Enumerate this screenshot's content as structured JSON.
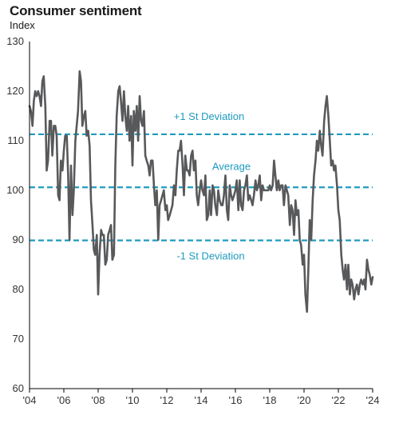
{
  "colors": {
    "line": "#58595b",
    "reference": "#1f9bbf",
    "axis": "#000000"
  },
  "chart_data": {
    "type": "line",
    "title": "Consumer sentiment",
    "ylabel": "Index",
    "xlabel": "",
    "ylim": [
      60,
      130
    ],
    "xlim": [
      2004,
      2024
    ],
    "yticks": [
      60,
      70,
      80,
      90,
      100,
      110,
      120,
      130
    ],
    "xticks": [
      2004,
      2006,
      2008,
      2010,
      2012,
      2014,
      2016,
      2018,
      2020,
      2022,
      2024
    ],
    "xtick_labels": [
      "'04",
      "'06",
      "'08",
      "'10",
      "'12",
      "'14",
      "'16",
      "'18",
      "'20",
      "'22",
      "'24"
    ],
    "grid": false,
    "reference_lines": [
      {
        "label": "+1 St Deviation",
        "value": 111.3
      },
      {
        "label": "Average",
        "value": 100.6
      },
      {
        "label": "-1 St Deviation",
        "value": 89.9
      }
    ],
    "series": [
      {
        "x": [
          2004.0,
          2004.08,
          2004.17,
          2004.25,
          2004.33,
          2004.42,
          2004.5,
          2004.58,
          2004.67,
          2004.75,
          2004.83,
          2004.92,
          2005.0,
          2005.08,
          2005.17,
          2005.25,
          2005.33,
          2005.42,
          2005.5,
          2005.58,
          2005.67,
          2005.75,
          2005.83,
          2005.92,
          2006.0,
          2006.08,
          2006.17,
          2006.25,
          2006.33,
          2006.42,
          2006.5,
          2006.58,
          2006.67,
          2006.75,
          2006.83,
          2006.92,
          2007.0,
          2007.08,
          2007.17,
          2007.25,
          2007.33,
          2007.42,
          2007.5,
          2007.58,
          2007.67,
          2007.75,
          2007.83,
          2007.92,
          2008.0,
          2008.08,
          2008.17,
          2008.25,
          2008.33,
          2008.42,
          2008.5,
          2008.58,
          2008.67,
          2008.75,
          2008.83,
          2008.92,
          2009.0,
          2009.08,
          2009.17,
          2009.25,
          2009.33,
          2009.42,
          2009.5,
          2009.58,
          2009.67,
          2009.75,
          2009.83,
          2009.92,
          2010.0,
          2010.08,
          2010.17,
          2010.25,
          2010.33,
          2010.42,
          2010.5,
          2010.58,
          2010.67,
          2010.75,
          2010.83,
          2010.92,
          2011.0,
          2011.08,
          2011.17,
          2011.25,
          2011.33,
          2011.42,
          2011.5,
          2011.58,
          2011.67,
          2011.75,
          2011.83,
          2011.92,
          2012.0,
          2012.08,
          2012.17,
          2012.25,
          2012.33,
          2012.42,
          2012.5,
          2012.58,
          2012.67,
          2012.75,
          2012.83,
          2012.92,
          2013.0,
          2013.08,
          2013.17,
          2013.25,
          2013.33,
          2013.42,
          2013.5,
          2013.58,
          2013.67,
          2013.75,
          2013.83,
          2013.92,
          2014.0,
          2014.08,
          2014.17,
          2014.25,
          2014.33,
          2014.42,
          2014.5,
          2014.58,
          2014.67,
          2014.75,
          2014.83,
          2014.92,
          2015.0,
          2015.08,
          2015.17,
          2015.25,
          2015.33,
          2015.42,
          2015.5,
          2015.58,
          2015.67,
          2015.75,
          2015.83,
          2015.92,
          2016.0,
          2016.08,
          2016.17,
          2016.25,
          2016.33,
          2016.42,
          2016.5,
          2016.58,
          2016.67,
          2016.75,
          2016.83,
          2016.92,
          2017.0,
          2017.08,
          2017.17,
          2017.25,
          2017.33,
          2017.42,
          2017.5,
          2017.58,
          2017.67,
          2017.75,
          2017.83,
          2017.92,
          2018.0,
          2018.08,
          2018.17,
          2018.25,
          2018.33,
          2018.42,
          2018.5,
          2018.58,
          2018.67,
          2018.75,
          2018.83,
          2018.92,
          2019.0,
          2019.08,
          2019.17,
          2019.25,
          2019.33,
          2019.42,
          2019.5,
          2019.58,
          2019.67,
          2019.75,
          2019.83,
          2019.92,
          2020.0,
          2020.08,
          2020.17,
          2020.25,
          2020.33,
          2020.42,
          2020.5,
          2020.58,
          2020.67,
          2020.75,
          2020.83,
          2020.92,
          2021.0,
          2021.08,
          2021.17,
          2021.25,
          2021.33,
          2021.42,
          2021.5,
          2021.58,
          2021.67,
          2021.75,
          2021.83,
          2021.92,
          2022.0,
          2022.08,
          2022.17,
          2022.25,
          2022.33,
          2022.42,
          2022.5,
          2022.58,
          2022.67,
          2022.75,
          2022.83,
          2022.92,
          2023.0,
          2023.08,
          2023.17,
          2023.25,
          2023.33,
          2023.42,
          2023.5,
          2023.58,
          2023.67,
          2023.75,
          2023.83,
          2023.92,
          2024.0
        ],
        "y": [
          117,
          116,
          113,
          118,
          120,
          119,
          120,
          119,
          117,
          122,
          123,
          117,
          104,
          106,
          114,
          114,
          107,
          113,
          113,
          111,
          99,
          98,
          106,
          104,
          108,
          111,
          111,
          103,
          90,
          105,
          95,
          100,
          110,
          113,
          116,
          124,
          122,
          113,
          115,
          116,
          111,
          112,
          109,
          98,
          93,
          88,
          87,
          91,
          79,
          87,
          92,
          91,
          91,
          85,
          86,
          91,
          92,
          93,
          86,
          87,
          105,
          115,
          120,
          121,
          118,
          114,
          120,
          115,
          112,
          117,
          110,
          115,
          105,
          116,
          112,
          117,
          110,
          119,
          114,
          113,
          116,
          107,
          106,
          105,
          103,
          106,
          106,
          101,
          97,
          100,
          90,
          97,
          98,
          99,
          100,
          96,
          97,
          94,
          95,
          96,
          97,
          101,
          99,
          104,
          108,
          108,
          110,
          105,
          99,
          107,
          104,
          104,
          103,
          107,
          108,
          104,
          106,
          99,
          97,
          100,
          102,
          100,
          99,
          103,
          94,
          95,
          100,
          95,
          101,
          100,
          97,
          95,
          100,
          98,
          97,
          97,
          99,
          103,
          96,
          94,
          101,
          99,
          98,
          99,
          100,
          102,
          96,
          102,
          97,
          96,
          100,
          101,
          103,
          98,
          99,
          98,
          97,
          99,
          102,
          100,
          101,
          103,
          98,
          101,
          100,
          100,
          100,
          100,
          101,
          100,
          101,
          106,
          103,
          100,
          102,
          100,
          101,
          101,
          97,
          101,
          100,
          99,
          93,
          97,
          96,
          91,
          98,
          95,
          96,
          90,
          89,
          85,
          87,
          79,
          75.5,
          84,
          94,
          90,
          98,
          103,
          106,
          110,
          108,
          112,
          109,
          107,
          114,
          117,
          119,
          115,
          110,
          105,
          106,
          104,
          105,
          101,
          96,
          94,
          87,
          84,
          82,
          85,
          80,
          85,
          79,
          82,
          81,
          78,
          80,
          81,
          79,
          81,
          82,
          81,
          82,
          80,
          86,
          84,
          83,
          81,
          82.5
        ]
      }
    ]
  }
}
